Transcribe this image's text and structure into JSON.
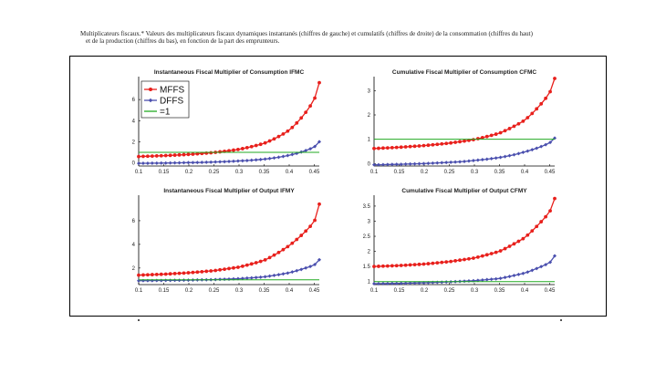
{
  "caption": {
    "line1": "Multiplicateurs fiscaux.* Valeurs des multiplicateurs fiscaux dynamiques instantanés (chiffres de gauche) et cumulatifs (chiffres de droite) de la consommation (chiffres du haut)",
    "line2": "et de la production (chiffres du bas), en fonction de la part des emprunteurs."
  },
  "colors": {
    "mffs": "#e8201c",
    "dffs": "#4a4fae",
    "eq1": "#22aa22"
  },
  "legend": {
    "mffs": "MFFS",
    "dffs": "DFFS",
    "eq1": "=1"
  },
  "chart_data": [
    {
      "type": "line",
      "title": "Instantaneous Fiscal Multiplier of Consumption IFMC",
      "xlim": [
        0.1,
        0.46
      ],
      "ylim": [
        -0.3,
        8
      ],
      "xticks": [
        "0.1",
        "0.15",
        "0.2",
        "0.25",
        "0.3",
        "0.35",
        "0.4",
        "0.45"
      ],
      "yticks": [
        "0",
        "2",
        "4",
        "6"
      ],
      "legend_position": "top-left",
      "series": [
        {
          "name": "MFFS",
          "points": [
            [
              0.1,
              0.6
            ],
            [
              0.15,
              0.68
            ],
            [
              0.2,
              0.8
            ],
            [
              0.25,
              0.98
            ],
            [
              0.3,
              1.28
            ],
            [
              0.35,
              1.85
            ],
            [
              0.4,
              3.1
            ],
            [
              0.45,
              6.0
            ],
            [
              0.46,
              7.6
            ]
          ]
        },
        {
          "name": "DFFS",
          "points": [
            [
              0.1,
              -0.05
            ],
            [
              0.15,
              -0.02
            ],
            [
              0.2,
              0.02
            ],
            [
              0.25,
              0.08
            ],
            [
              0.3,
              0.18
            ],
            [
              0.35,
              0.35
            ],
            [
              0.4,
              0.72
            ],
            [
              0.45,
              1.5
            ],
            [
              0.46,
              2.0
            ]
          ]
        },
        {
          "name": "=1",
          "points": [
            [
              0.1,
              1.0
            ],
            [
              0.46,
              1.0
            ]
          ]
        }
      ]
    },
    {
      "type": "line",
      "title": "Cumulative Fiscal Multiplier of Consumption CFMC",
      "xlim": [
        0.1,
        0.46
      ],
      "ylim": [
        -0.1,
        3.5
      ],
      "xticks": [
        "0.1",
        "0.15",
        "0.2",
        "0.25",
        "0.3",
        "0.35",
        "0.4",
        "0.45"
      ],
      "yticks": [
        "0",
        "1",
        "2",
        "3"
      ],
      "series": [
        {
          "name": "MFFS",
          "points": [
            [
              0.1,
              0.62
            ],
            [
              0.15,
              0.67
            ],
            [
              0.2,
              0.74
            ],
            [
              0.25,
              0.84
            ],
            [
              0.3,
              0.99
            ],
            [
              0.35,
              1.25
            ],
            [
              0.4,
              1.78
            ],
            [
              0.45,
              2.9
            ],
            [
              0.46,
              3.5
            ]
          ]
        },
        {
          "name": "DFFS",
          "points": [
            [
              0.1,
              -0.05
            ],
            [
              0.15,
              -0.03
            ],
            [
              0.2,
              0.0
            ],
            [
              0.25,
              0.05
            ],
            [
              0.3,
              0.13
            ],
            [
              0.35,
              0.25
            ],
            [
              0.4,
              0.48
            ],
            [
              0.45,
              0.85
            ],
            [
              0.46,
              1.05
            ]
          ]
        },
        {
          "name": "=1",
          "points": [
            [
              0.1,
              1.0
            ],
            [
              0.46,
              1.0
            ]
          ]
        }
      ]
    },
    {
      "type": "line",
      "title": "Instantaneous Fiscal Multiplier of Output IFMY",
      "xlim": [
        0.1,
        0.46
      ],
      "ylim": [
        0.6,
        8
      ],
      "xticks": [
        "0.1",
        "0.15",
        "0.2",
        "0.25",
        "0.3",
        "0.35",
        "0.4",
        "0.45"
      ],
      "yticks": [
        "2",
        "4",
        "6"
      ],
      "series": [
        {
          "name": "MFFS",
          "points": [
            [
              0.1,
              1.4
            ],
            [
              0.15,
              1.48
            ],
            [
              0.2,
              1.6
            ],
            [
              0.25,
              1.78
            ],
            [
              0.3,
              2.08
            ],
            [
              0.35,
              2.65
            ],
            [
              0.4,
              3.9
            ],
            [
              0.45,
              5.9
            ],
            [
              0.46,
              7.4
            ]
          ]
        },
        {
          "name": "DFFS",
          "points": [
            [
              0.1,
              0.93
            ],
            [
              0.15,
              0.95
            ],
            [
              0.2,
              0.98
            ],
            [
              0.25,
              1.02
            ],
            [
              0.3,
              1.1
            ],
            [
              0.35,
              1.25
            ],
            [
              0.4,
              1.6
            ],
            [
              0.45,
              2.25
            ],
            [
              0.46,
              2.7
            ]
          ]
        },
        {
          "name": "=1",
          "points": [
            [
              0.1,
              1.0
            ],
            [
              0.46,
              1.0
            ]
          ]
        }
      ]
    },
    {
      "type": "line",
      "title": "Cumulative Fiscal Multiplier of Output CFMY",
      "xlim": [
        0.1,
        0.46
      ],
      "ylim": [
        0.9,
        3.8
      ],
      "xticks": [
        "0.1",
        "0.15",
        "0.2",
        "0.25",
        "0.3",
        "0.35",
        "0.4",
        "0.45"
      ],
      "yticks": [
        "1",
        "1.5",
        "2",
        "2.5",
        "3",
        "3.5"
      ],
      "series": [
        {
          "name": "MFFS",
          "points": [
            [
              0.1,
              1.5
            ],
            [
              0.15,
              1.53
            ],
            [
              0.2,
              1.58
            ],
            [
              0.25,
              1.66
            ],
            [
              0.3,
              1.78
            ],
            [
              0.35,
              2.0
            ],
            [
              0.4,
              2.45
            ],
            [
              0.45,
              3.3
            ],
            [
              0.46,
              3.75
            ]
          ]
        },
        {
          "name": "DFFS",
          "points": [
            [
              0.1,
              0.93
            ],
            [
              0.15,
              0.94
            ],
            [
              0.2,
              0.96
            ],
            [
              0.25,
              0.99
            ],
            [
              0.3,
              1.03
            ],
            [
              0.35,
              1.1
            ],
            [
              0.4,
              1.28
            ],
            [
              0.45,
              1.62
            ],
            [
              0.46,
              1.85
            ]
          ]
        },
        {
          "name": "=1",
          "points": [
            [
              0.1,
              1.0
            ],
            [
              0.46,
              1.0
            ]
          ]
        }
      ]
    }
  ]
}
